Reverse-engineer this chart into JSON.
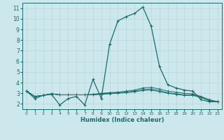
{
  "xlabel": "Humidex (Indice chaleur)",
  "xlim": [
    -0.5,
    23.5
  ],
  "ylim": [
    1.5,
    11.5
  ],
  "yticks": [
    2,
    3,
    4,
    5,
    6,
    7,
    8,
    9,
    10,
    11
  ],
  "xticks": [
    0,
    1,
    2,
    3,
    4,
    5,
    6,
    7,
    8,
    9,
    10,
    11,
    12,
    13,
    14,
    15,
    16,
    17,
    18,
    19,
    20,
    21,
    22,
    23
  ],
  "bg_color": "#cce8ec",
  "grid_color": "#b8d8dc",
  "line_color": "#1a6b6b",
  "spike_line": {
    "x": [
      0,
      1,
      2,
      3,
      4,
      5,
      6,
      7,
      8,
      9,
      10,
      11,
      12,
      13,
      14,
      15,
      16,
      17,
      18,
      19,
      20,
      21,
      22,
      23
    ],
    "y": [
      3.2,
      2.5,
      2.8,
      2.9,
      1.9,
      2.5,
      2.7,
      1.9,
      4.3,
      2.5,
      7.6,
      9.8,
      10.2,
      10.5,
      11.1,
      9.3,
      5.5,
      3.8,
      3.5,
      3.3,
      3.2,
      2.4,
      2.2,
      2.2
    ]
  },
  "flat_lines": [
    {
      "x": [
        0,
        1,
        2,
        3,
        4,
        5,
        6,
        7,
        8,
        9,
        10,
        11,
        12,
        13,
        14,
        15,
        16,
        17,
        18,
        19,
        20,
        21,
        22,
        23
      ],
      "y": [
        3.2,
        2.7,
        2.8,
        2.95,
        2.85,
        2.85,
        2.85,
        2.85,
        2.9,
        3.0,
        3.05,
        3.1,
        3.2,
        3.3,
        3.5,
        3.55,
        3.4,
        3.2,
        3.1,
        3.0,
        2.95,
        2.7,
        2.4,
        2.2
      ]
    },
    {
      "x": [
        0,
        1,
        2,
        3,
        4,
        5,
        6,
        7,
        8,
        9,
        10,
        11,
        12,
        13,
        14,
        15,
        16,
        17,
        18,
        19,
        20,
        21,
        22,
        23
      ],
      "y": [
        3.2,
        2.7,
        2.8,
        2.95,
        2.85,
        2.85,
        2.85,
        2.85,
        2.85,
        2.95,
        3.0,
        3.05,
        3.1,
        3.2,
        3.35,
        3.4,
        3.25,
        3.05,
        2.95,
        2.85,
        2.85,
        2.65,
        2.3,
        2.2
      ]
    },
    {
      "x": [
        0,
        1,
        2,
        3,
        4,
        5,
        6,
        7,
        8,
        9,
        10,
        11,
        12,
        13,
        14,
        15,
        16,
        17,
        18,
        19,
        20,
        21,
        22,
        23
      ],
      "y": [
        3.2,
        2.7,
        2.8,
        2.95,
        2.85,
        2.85,
        2.85,
        2.85,
        2.85,
        2.9,
        2.95,
        3.0,
        3.05,
        3.15,
        3.25,
        3.3,
        3.15,
        3.0,
        2.9,
        2.8,
        2.8,
        2.6,
        2.3,
        2.2
      ]
    }
  ]
}
